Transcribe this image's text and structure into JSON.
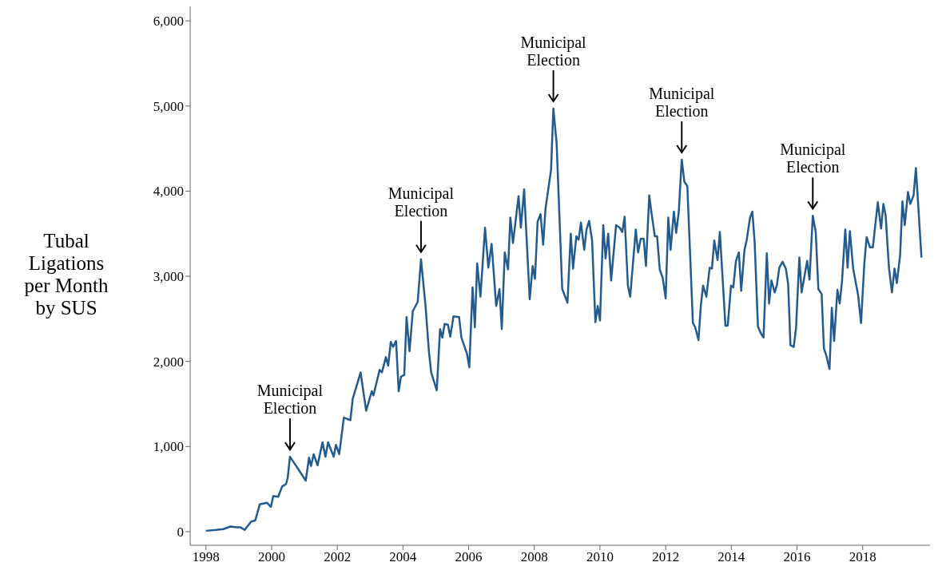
{
  "chart_data": {
    "type": "line",
    "ylabel": "Tubal Ligations per Month by SUS",
    "x": [
      1998.0,
      1998.3,
      1998.53,
      1998.75,
      1998.94,
      1999.06,
      1999.18,
      1999.38,
      1999.5,
      1999.64,
      1999.86,
      1999.98,
      2000.05,
      2000.2,
      2000.32,
      2000.44,
      2000.49,
      2000.56,
      2000.87,
      2001.04,
      2001.14,
      2001.2,
      2001.28,
      2001.4,
      2001.55,
      2001.64,
      2001.72,
      2001.89,
      2001.96,
      2002.06,
      2002.2,
      2002.4,
      2002.47,
      2002.71,
      2002.88,
      2003.05,
      2003.1,
      2003.29,
      2003.36,
      2003.48,
      2003.55,
      2003.63,
      2003.7,
      2003.79,
      2003.87,
      2003.94,
      2004.04,
      2004.11,
      2004.2,
      2004.3,
      2004.45,
      2004.55,
      2004.69,
      2004.79,
      2004.86,
      2005.03,
      2005.13,
      2005.2,
      2005.27,
      2005.37,
      2005.44,
      2005.54,
      2005.71,
      2005.78,
      2005.95,
      2006.02,
      2006.12,
      2006.19,
      2006.26,
      2006.36,
      2006.5,
      2006.6,
      2006.7,
      2006.84,
      2006.94,
      2007.01,
      2007.1,
      2007.2,
      2007.27,
      2007.35,
      2007.52,
      2007.59,
      2007.69,
      2007.86,
      2007.95,
      2008.02,
      2008.1,
      2008.19,
      2008.27,
      2008.34,
      2008.51,
      2008.58,
      2008.68,
      2008.85,
      2009.01,
      2009.11,
      2009.18,
      2009.28,
      2009.35,
      2009.42,
      2009.52,
      2009.59,
      2009.67,
      2009.76,
      2009.86,
      2009.93,
      2010.0,
      2010.1,
      2010.17,
      2010.25,
      2010.34,
      2010.49,
      2010.6,
      2010.68,
      2010.75,
      2010.85,
      2010.92,
      2011.09,
      2011.16,
      2011.24,
      2011.33,
      2011.4,
      2011.5,
      2011.57,
      2011.67,
      2011.74,
      2011.82,
      2011.91,
      2012.0,
      2012.08,
      2012.15,
      2012.25,
      2012.32,
      2012.4,
      2012.49,
      2012.57,
      2012.66,
      2012.83,
      2012.9,
      2013.0,
      2013.07,
      2013.14,
      2013.24,
      2013.34,
      2013.41,
      2013.48,
      2013.58,
      2013.65,
      2013.82,
      2013.89,
      2013.99,
      2014.06,
      2014.14,
      2014.23,
      2014.3,
      2014.4,
      2014.47,
      2014.57,
      2014.64,
      2014.71,
      2014.81,
      2014.9,
      2014.98,
      2015.08,
      2015.15,
      2015.22,
      2015.32,
      2015.39,
      2015.46,
      2015.56,
      2015.66,
      2015.73,
      2015.8,
      2015.9,
      2015.97,
      2016.07,
      2016.14,
      2016.31,
      2016.38,
      2016.48,
      2016.57,
      2016.65,
      2016.75,
      2016.82,
      2016.89,
      2016.99,
      2017.06,
      2017.13,
      2017.23,
      2017.3,
      2017.37,
      2017.47,
      2017.54,
      2017.61,
      2017.71,
      2017.86,
      2017.95,
      2018.05,
      2018.12,
      2018.22,
      2018.31,
      2018.46,
      2018.56,
      2018.63,
      2018.7,
      2018.8,
      2018.89,
      2018.97,
      2019.04,
      2019.14,
      2019.21,
      2019.28,
      2019.38,
      2019.45,
      2019.55,
      2019.62,
      2019.79
    ],
    "series": [
      {
        "color": "#235b8e",
        "values": [
          10,
          20,
          30,
          60,
          50,
          50,
          20,
          120,
          130,
          320,
          340,
          290,
          420,
          410,
          530,
          560,
          630,
          880,
          700,
          600,
          870,
          770,
          910,
          780,
          1050,
          880,
          1050,
          880,
          1020,
          910,
          1340,
          1310,
          1560,
          1870,
          1420,
          1650,
          1600,
          1900,
          1870,
          2050,
          1950,
          2230,
          2170,
          2240,
          1650,
          1820,
          1840,
          2520,
          2120,
          2590,
          2700,
          3200,
          2640,
          2120,
          1870,
          1660,
          2380,
          2280,
          2440,
          2430,
          2290,
          2530,
          2520,
          2280,
          2090,
          1930,
          2870,
          2400,
          3150,
          2760,
          3570,
          3100,
          3380,
          2650,
          2850,
          2380,
          3280,
          3080,
          3690,
          3390,
          3940,
          3570,
          4020,
          2730,
          3120,
          2970,
          3640,
          3730,
          3370,
          3790,
          4250,
          4970,
          4560,
          2850,
          2690,
          3500,
          3090,
          3470,
          3430,
          3630,
          3310,
          3550,
          3650,
          3420,
          2460,
          2650,
          2480,
          3600,
          3210,
          3500,
          2950,
          3600,
          3570,
          3520,
          3700,
          2890,
          2760,
          3550,
          3280,
          3440,
          3440,
          3120,
          3950,
          3740,
          3470,
          3470,
          3080,
          2980,
          2740,
          3690,
          3310,
          3760,
          3510,
          3760,
          4370,
          4110,
          4060,
          2450,
          2400,
          2250,
          2650,
          2890,
          2760,
          3100,
          3090,
          3420,
          3190,
          3520,
          2420,
          2420,
          2890,
          2870,
          3180,
          3280,
          2830,
          3310,
          3430,
          3690,
          3760,
          3400,
          2410,
          2330,
          2280,
          3270,
          2680,
          2950,
          2810,
          2900,
          3100,
          3170,
          3090,
          2910,
          2190,
          2170,
          2390,
          3220,
          2810,
          3180,
          2960,
          3710,
          3520,
          2850,
          2790,
          2150,
          2070,
          1910,
          2630,
          2240,
          2840,
          2680,
          2940,
          3550,
          3100,
          3530,
          3090,
          2780,
          2450,
          3150,
          3460,
          3340,
          3340,
          3870,
          3560,
          3850,
          3710,
          3100,
          2810,
          3090,
          2920,
          3250,
          3880,
          3600,
          3990,
          3850,
          3950,
          4270,
          3220
        ]
      }
    ],
    "xlim": [
      1997.52,
      2020.05
    ],
    "xticks": [
      1998,
      2000,
      2002,
      2004,
      2006,
      2008,
      2010,
      2012,
      2014,
      2016,
      2018
    ],
    "ylim": [
      -160,
      6170
    ],
    "yticks": [
      0,
      {
        "value": 1000,
        "label": "1,000"
      },
      {
        "value": 2000,
        "label": "2,000"
      },
      {
        "value": 3000,
        "label": "3,000"
      },
      {
        "value": 4000,
        "label": "4,000"
      },
      {
        "value": 5000,
        "label": "5,000"
      },
      {
        "value": 6000,
        "label": "6,000"
      }
    ],
    "grid": false,
    "legend": false,
    "marker": "none",
    "line_style": "solid",
    "annotations": [
      {
        "text": "Municipal Election",
        "x": 2000.56,
        "y": 880
      },
      {
        "text": "Municipal Election",
        "x": 2004.55,
        "y": 3200
      },
      {
        "text": "Municipal Election",
        "x": 2008.58,
        "y": 4970
      },
      {
        "text": "Municipal Election",
        "x": 2012.49,
        "y": 4370
      },
      {
        "text": "Municipal Election",
        "x": 2016.48,
        "y": 3710
      }
    ]
  }
}
